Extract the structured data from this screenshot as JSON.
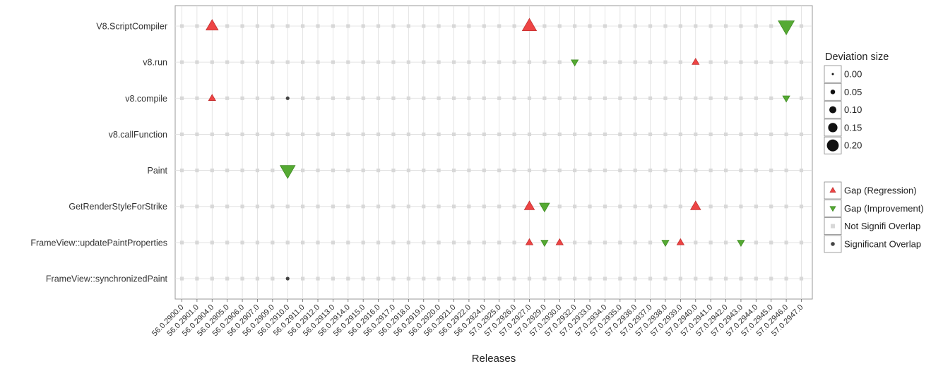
{
  "chart_data": {
    "type": "scatter",
    "xlabel": "Releases",
    "ylabel": "",
    "x_categories": [
      "56.0.2900.0",
      "56.0.2901.0",
      "56.0.2904.0",
      "56.0.2905.0",
      "56.0.2906.0",
      "56.0.2907.0",
      "56.0.2909.0",
      "56.0.2910.0",
      "56.0.2911.0",
      "56.0.2912.0",
      "56.0.2913.0",
      "56.0.2914.0",
      "56.0.2915.0",
      "56.0.2916.0",
      "56.0.2917.0",
      "56.0.2918.0",
      "56.0.2919.0",
      "56.0.2920.0",
      "56.0.2921.0",
      "56.0.2922.0",
      "56.0.2924.0",
      "57.0.2925.0",
      "57.0.2926.0",
      "57.0.2927.0",
      "57.0.2929.0",
      "57.0.2930.0",
      "57.0.2932.0",
      "57.0.2933.0",
      "57.0.2934.0",
      "57.0.2935.0",
      "57.0.2936.0",
      "57.0.2937.0",
      "57.0.2938.0",
      "57.0.2939.0",
      "57.0.2940.0",
      "57.0.2941.0",
      "57.0.2942.0",
      "57.0.2943.0",
      "57.0.2944.0",
      "57.0.2945.0",
      "57.0.2946.0",
      "57.0.2947.0"
    ],
    "y_categories": [
      "V8.ScriptCompiler",
      "v8.run",
      "v8.compile",
      "v8.callFunction",
      "Paint",
      "GetRenderStyleForStrike",
      "FrameView::updatePaintProperties",
      "FrameView::synchronizedPaint"
    ],
    "grid": true,
    "size_legend": {
      "title": "Deviation size",
      "values": [
        "0.00",
        "0.05",
        "0.10",
        "0.15",
        "0.20"
      ]
    },
    "type_legend": [
      {
        "key": "regression",
        "label": "Gap (Regression)",
        "color": "#ee4444"
      },
      {
        "key": "improvement",
        "label": "Gap (Improvement)",
        "color": "#55aa33"
      },
      {
        "key": "notsig",
        "label": "Not Signifi Overlap",
        "color": "#d8d8d8"
      },
      {
        "key": "sig",
        "label": "Significant Overlap",
        "color": "#444444"
      }
    ],
    "points": [
      {
        "y": "V8.ScriptCompiler",
        "x": "56.0.2904.0",
        "type": "regression",
        "size": 0.1
      },
      {
        "y": "V8.ScriptCompiler",
        "x": "57.0.2927.0",
        "type": "regression",
        "size": 0.15
      },
      {
        "y": "V8.ScriptCompiler",
        "x": "57.0.2946.0",
        "type": "improvement",
        "size": 0.2
      },
      {
        "y": "v8.run",
        "x": "57.0.2932.0",
        "type": "improvement",
        "size": 0.02
      },
      {
        "y": "v8.run",
        "x": "57.0.2940.0",
        "type": "regression",
        "size": 0.02
      },
      {
        "y": "v8.compile",
        "x": "56.0.2904.0",
        "type": "regression",
        "size": 0.02
      },
      {
        "y": "v8.compile",
        "x": "56.0.2910.0",
        "type": "sig",
        "size": 0.01
      },
      {
        "y": "v8.compile",
        "x": "57.0.2946.0",
        "type": "improvement",
        "size": 0.02
      },
      {
        "y": "Paint",
        "x": "56.0.2910.0",
        "type": "improvement",
        "size": 0.17
      },
      {
        "y": "GetRenderStyleForStrike",
        "x": "57.0.2927.0",
        "type": "regression",
        "size": 0.06
      },
      {
        "y": "GetRenderStyleForStrike",
        "x": "57.0.2929.0",
        "type": "improvement",
        "size": 0.06
      },
      {
        "y": "GetRenderStyleForStrike",
        "x": "57.0.2940.0",
        "type": "regression",
        "size": 0.06
      },
      {
        "y": "FrameView::updatePaintProperties",
        "x": "57.0.2927.0",
        "type": "regression",
        "size": 0.02
      },
      {
        "y": "FrameView::updatePaintProperties",
        "x": "57.0.2929.0",
        "type": "improvement",
        "size": 0.02
      },
      {
        "y": "FrameView::updatePaintProperties",
        "x": "57.0.2930.0",
        "type": "regression",
        "size": 0.02
      },
      {
        "y": "FrameView::updatePaintProperties",
        "x": "57.0.2938.0",
        "type": "improvement",
        "size": 0.02
      },
      {
        "y": "FrameView::updatePaintProperties",
        "x": "57.0.2939.0",
        "type": "regression",
        "size": 0.02
      },
      {
        "y": "FrameView::updatePaintProperties",
        "x": "57.0.2943.0",
        "type": "improvement",
        "size": 0.02
      },
      {
        "y": "FrameView::synchronizedPaint",
        "x": "56.0.2910.0",
        "type": "sig",
        "size": 0.01
      }
    ]
  }
}
